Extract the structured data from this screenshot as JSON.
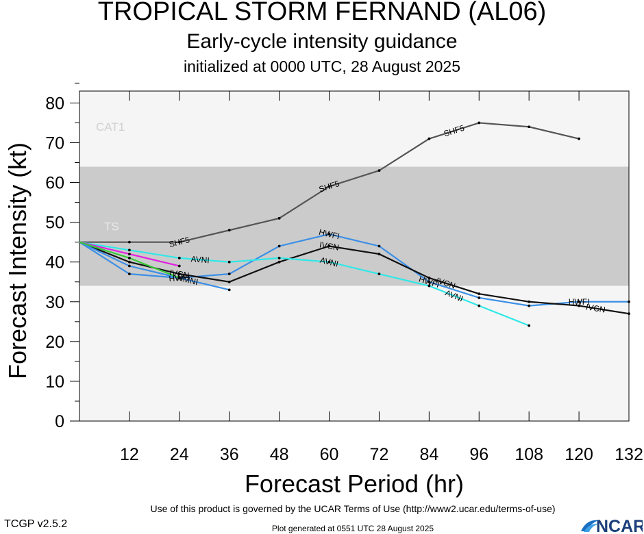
{
  "header": {
    "title": "TROPICAL STORM FERNAND (AL06)",
    "subtitle": "Early-cycle intensity guidance",
    "init": "initialized at 0000 UTC, 28 August 2025"
  },
  "footer": {
    "terms": "Use of this product is governed by the UCAR Terms of Use (http://www2.ucar.edu/terms-of-use)",
    "version": "TCGP v2.5.2",
    "generated": "Plot generated at 0551 UTC   28 August 2025",
    "logo": "NCAR"
  },
  "colors": {
    "band_light": "#f5f5f5",
    "band_ts": "#cbcbcb",
    "band_text": "#e8e8e8",
    "cat1_text": "#d0d0d0"
  },
  "chart_data": {
    "type": "line",
    "xlabel": "Forecast Period (hr)",
    "ylabel": "Forecast Intensity (kt)",
    "xlim": [
      0,
      132
    ],
    "ylim": [
      0,
      83
    ],
    "xticks": [
      12,
      24,
      36,
      48,
      60,
      72,
      84,
      96,
      108,
      120,
      132
    ],
    "yticks": [
      0,
      10,
      20,
      30,
      40,
      50,
      60,
      70,
      80
    ],
    "bands": [
      {
        "label": "",
        "from": 0,
        "to": 34,
        "color": "#f5f5f5"
      },
      {
        "label": "TS",
        "from": 34,
        "to": 64,
        "color": "#cbcbcb"
      },
      {
        "label": "CAT1",
        "from": 64,
        "to": 83,
        "color": "#f5f5f5"
      }
    ],
    "series": [
      {
        "name": "SHF5",
        "color": "#555555",
        "labels_at": [
          24,
          60,
          90
        ],
        "points": [
          [
            0,
            45
          ],
          [
            12,
            45
          ],
          [
            24,
            45
          ],
          [
            36,
            48
          ],
          [
            48,
            51
          ],
          [
            60,
            59
          ],
          [
            72,
            63
          ],
          [
            84,
            71
          ],
          [
            96,
            75
          ],
          [
            108,
            74
          ],
          [
            120,
            71
          ]
        ]
      },
      {
        "name": "HWFI",
        "color": "#3b8fe6",
        "labels_at": [
          24,
          60,
          84,
          120
        ],
        "points": [
          [
            0,
            45
          ],
          [
            12,
            37
          ],
          [
            24,
            36
          ],
          [
            36,
            37
          ],
          [
            48,
            44
          ],
          [
            60,
            47
          ],
          [
            72,
            44
          ],
          [
            84,
            35
          ],
          [
            96,
            31
          ],
          [
            108,
            29
          ],
          [
            120,
            30
          ],
          [
            132,
            30
          ]
        ]
      },
      {
        "name": "IVCN",
        "color": "#111111",
        "labels_at": [
          24,
          60,
          88,
          124
        ],
        "points": [
          [
            0,
            45
          ],
          [
            12,
            40
          ],
          [
            24,
            37
          ],
          [
            36,
            35
          ],
          [
            48,
            40
          ],
          [
            60,
            44
          ],
          [
            72,
            42
          ],
          [
            84,
            36
          ],
          [
            96,
            32
          ],
          [
            108,
            30
          ],
          [
            120,
            29
          ],
          [
            132,
            27
          ]
        ]
      },
      {
        "name": "AVNI",
        "color": "#2ee8e8",
        "labels_at": [
          29,
          60,
          90
        ],
        "points": [
          [
            0,
            45
          ],
          [
            12,
            43
          ],
          [
            24,
            41
          ],
          [
            36,
            40
          ],
          [
            48,
            41
          ],
          [
            60,
            40
          ],
          [
            72,
            37
          ],
          [
            84,
            34
          ],
          [
            96,
            29
          ],
          [
            108,
            24
          ]
        ]
      },
      {
        "name": "HMNI",
        "color": "#3b8fe6",
        "labels_at": [
          26
        ],
        "points": [
          [
            0,
            45
          ],
          [
            12,
            39
          ],
          [
            24,
            36
          ],
          [
            36,
            33
          ]
        ]
      },
      {
        "name": "",
        "color": "#e020e0",
        "labels_at": [],
        "points": [
          [
            0,
            45
          ],
          [
            12,
            42
          ],
          [
            24,
            39
          ]
        ]
      },
      {
        "name": "",
        "color": "#38c838",
        "labels_at": [],
        "points": [
          [
            0,
            45
          ],
          [
            12,
            41
          ],
          [
            24,
            36
          ]
        ]
      }
    ]
  }
}
